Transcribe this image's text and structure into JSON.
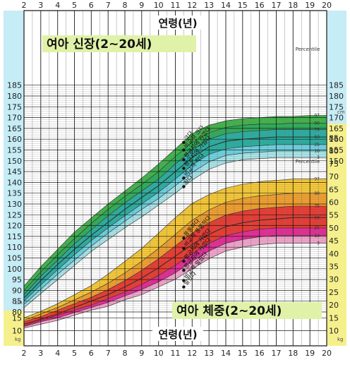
{
  "chart_data": [
    {
      "type": "area",
      "title": "여아 신장(2~20세)",
      "xlabel": "연령(년)",
      "ylabel": "",
      "unit": "cm",
      "x_ticks": [
        2,
        3,
        4,
        5,
        6,
        7,
        8,
        9,
        10,
        11,
        12,
        13,
        14,
        15,
        16,
        17,
        18,
        19,
        20
      ],
      "y_ticks": [
        80,
        85,
        90,
        95,
        100,
        105,
        110,
        115,
        120,
        125,
        130,
        135,
        140,
        145,
        150,
        155,
        160,
        165,
        170,
        175,
        180,
        185
      ],
      "right_y_ticks": [
        150,
        155,
        160,
        165,
        170,
        175,
        180,
        185
      ],
      "xlim": [
        2,
        20
      ],
      "ylim": [
        78,
        187
      ],
      "percentile_title": "Percentile",
      "x": [
        2,
        3,
        4,
        5,
        6,
        7,
        8,
        9,
        10,
        11,
        12,
        13,
        14,
        15,
        16,
        17,
        18,
        19,
        20
      ],
      "colors": [
        "#2fae3a",
        "#1aa64a",
        "#16a898",
        "#5dcfe0",
        "#9fe4e8"
      ],
      "series": [
        {
          "name": "97",
          "values": [
            92,
            101,
            109,
            117,
            123.5,
            130,
            136,
            142,
            148.5,
            155.5,
            162.5,
            166.5,
            168.5,
            169.5,
            170,
            170.5,
            170.5,
            171,
            171
          ]
        },
        {
          "name": "90",
          "values": [
            90,
            98.5,
            106.5,
            114,
            121,
            127.5,
            133.5,
            139,
            145,
            152,
            158.5,
            163,
            165.5,
            166.5,
            167,
            167,
            167.5,
            167.5,
            167.5
          ]
        },
        {
          "name": "75",
          "values": [
            88,
            96.5,
            104,
            111.5,
            118,
            124.5,
            130.5,
            136,
            141.5,
            148.5,
            155,
            160,
            162.5,
            163.5,
            164,
            164.5,
            164.5,
            164.5,
            164.5
          ]
        },
        {
          "name": "50",
          "values": [
            86.5,
            94.5,
            102,
            109,
            115.5,
            121.5,
            127.5,
            133,
            138.5,
            145,
            151.5,
            156.5,
            159,
            160,
            160.5,
            161,
            161,
            161,
            161
          ]
        },
        {
          "name": "25",
          "values": [
            85,
            92.5,
            99.5,
            106.5,
            113,
            119,
            124.5,
            130,
            135.5,
            141.5,
            148,
            153,
            155.5,
            156.5,
            157,
            157.5,
            157.5,
            157.5,
            157.5
          ]
        },
        {
          "name": "10",
          "values": [
            83.5,
            90.5,
            97.5,
            104,
            110.5,
            116.5,
            122,
            127.5,
            132.5,
            138.5,
            144.5,
            149.5,
            152.5,
            153.5,
            154,
            154.5,
            154.5,
            154.5,
            154.5
          ]
        },
        {
          "name": "3",
          "values": [
            82,
            88.5,
            95,
            101.5,
            108,
            113.5,
            119,
            124,
            129.5,
            135,
            141,
            146,
            149,
            150.5,
            151,
            151.5,
            151.5,
            151.5,
            151.5
          ]
        }
      ],
      "annotations": [
        {
          "text": "크다",
          "age": 11.5,
          "value": 158.5
        },
        {
          "text": "비교적 크다",
          "age": 11.5,
          "value": 155
        },
        {
          "text": "평균치에 가깝다",
          "age": 11.5,
          "value": 150.5
        },
        {
          "text": "평균치에 가깝다",
          "age": 11.5,
          "value": 146.5
        },
        {
          "text": "비교적 작다",
          "age": 11.5,
          "value": 142
        },
        {
          "text": "작다",
          "age": 11.5,
          "value": 138
        }
      ]
    },
    {
      "type": "area",
      "title": "여아 체중(2~20세)",
      "xlabel": "연령(년)",
      "ylabel": "",
      "unit": "kg",
      "x_ticks": [
        2,
        3,
        4,
        5,
        6,
        7,
        8,
        9,
        10,
        11,
        12,
        13,
        14,
        15,
        16,
        17,
        18,
        19,
        20
      ],
      "y_ticks": [
        10,
        15
      ],
      "right_y_ticks": [
        10,
        15,
        20,
        25,
        30,
        35,
        40,
        45,
        50,
        55,
        60,
        65,
        70,
        75,
        80,
        85
      ],
      "xlim": [
        2,
        20
      ],
      "ylim": [
        7,
        88
      ],
      "percentile_title": "Percentile",
      "x": [
        2,
        3,
        4,
        5,
        6,
        7,
        8,
        9,
        10,
        11,
        12,
        13,
        14,
        15,
        16,
        17,
        18,
        19,
        20
      ],
      "colors": [
        "#f7c422",
        "#f0961a",
        "#e8281e",
        "#e3178c",
        "#f29bc8"
      ],
      "series": [
        {
          "name": "97",
          "values": [
            15,
            17.5,
            20.5,
            24,
            27.5,
            32,
            37,
            42,
            48,
            54,
            59.5,
            63,
            65.5,
            67,
            68,
            68.5,
            69,
            69,
            69
          ]
        },
        {
          "name": "90",
          "values": [
            14,
            16.5,
            19,
            22,
            25,
            28.5,
            32.5,
            37,
            42,
            47.5,
            53,
            57,
            60,
            61.5,
            62.5,
            63,
            63.5,
            63.5,
            63.5
          ]
        },
        {
          "name": "75",
          "values": [
            13.5,
            15.5,
            18,
            20.5,
            23,
            26,
            29.5,
            33.5,
            38,
            43,
            48,
            52,
            55,
            56.5,
            57.5,
            58,
            58.5,
            58.5,
            58.5
          ]
        },
        {
          "name": "50",
          "values": [
            12.5,
            14.5,
            16.5,
            19,
            21.5,
            24,
            27,
            30.5,
            34.5,
            39,
            43.5,
            47.5,
            50.5,
            52,
            53,
            53.5,
            54,
            54,
            54
          ]
        },
        {
          "name": "25",
          "values": [
            12,
            14,
            16,
            18,
            20,
            22.5,
            25,
            28,
            31.5,
            35.5,
            40,
            44,
            47,
            48.5,
            49.5,
            50,
            50,
            50,
            50
          ]
        },
        {
          "name": "10",
          "values": [
            11.5,
            13.5,
            15,
            17,
            19,
            21,
            23.5,
            26,
            29,
            32.5,
            37,
            41,
            44,
            45.5,
            46.5,
            47,
            47,
            47,
            47
          ]
        },
        {
          "name": "3",
          "values": [
            11,
            12.5,
            14,
            16,
            18,
            19.5,
            22,
            24,
            27,
            30,
            34,
            38,
            41,
            42.5,
            43.5,
            44,
            44,
            44,
            44
          ]
        }
      ],
      "annotations": [
        {
          "text": "뚱뚱하다",
          "age": 11.5,
          "value": 46
        },
        {
          "text": "비교적 뚱뚱하다",
          "age": 11.5,
          "value": 42
        },
        {
          "text": "평균치에 가깝다",
          "age": 11.5,
          "value": 37
        },
        {
          "text": "평균치에 가깝다",
          "age": 11.5,
          "value": 33.5
        },
        {
          "text": "비교적 말랐다",
          "age": 11.5,
          "value": 29.5
        },
        {
          "text": "말랐다",
          "age": 11.5,
          "value": 27
        }
      ]
    }
  ],
  "style": {
    "left_axis_bg_top": "#c6ecf5",
    "left_axis_bg_bottom": "#f6f08c",
    "right_axis_bg_top": "#c6ecf5",
    "right_axis_bg_bottom": "#f6f08c",
    "title_bg": "#dff2a8",
    "grid": "#1c1c1c",
    "minor_grid": "#7b7b7b"
  }
}
